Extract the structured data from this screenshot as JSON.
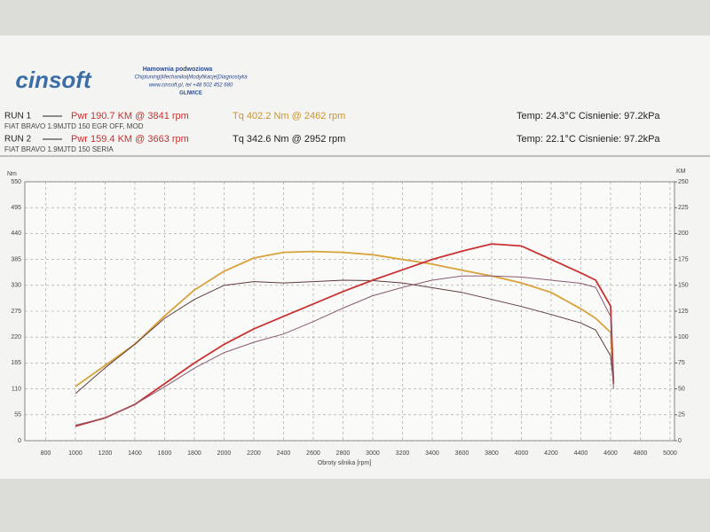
{
  "header": {
    "logo": "cinsoft",
    "line1": "Hamownia podwoziowa",
    "line2": "Chiptuning|Mechanika|Modyfikacje|Diagnostyka",
    "line3": "www.cinsoft.pl, tel +48 502 452 680",
    "line4": "GLIWICE"
  },
  "runs": [
    {
      "label": "RUN 1",
      "pwr": "Pwr  190.7 KM @ 3841 rpm",
      "tq": "Tq 402.2 Nm @ 2462 rpm",
      "cond": "Temp: 24.3°C  Cisnienie: 97.2kPa",
      "car": "FIAT BRAVO 1.9MJTD 150 EGR OFF, MOD"
    },
    {
      "label": "RUN 2",
      "pwr": "Pwr  159.4 KM @ 3663 rpm",
      "tq": "Tq 342.6 Nm @ 2952 rpm",
      "cond": "Temp: 22.1°C  Cisnienie: 97.2kPa",
      "car": "FIAT BRAVO 1.9MJTD 150 SERIA"
    }
  ],
  "chart_data": {
    "type": "line",
    "ylabel": "Nm",
    "y2label": "KM",
    "xlabel": "Obroty silnika [rpm]",
    "grid": true,
    "x": [
      1000,
      1200,
      1400,
      1600,
      1800,
      2000,
      2200,
      2400,
      2600,
      2800,
      3000,
      3200,
      3400,
      3600,
      3800,
      4000,
      4200,
      4400,
      4500,
      4600,
      4620
    ],
    "xlim": [
      660,
      5030
    ],
    "xticks": [
      800,
      1000,
      1200,
      1400,
      1600,
      1800,
      2000,
      2200,
      2400,
      2600,
      2800,
      3000,
      3200,
      3400,
      3600,
      3800,
      4000,
      4200,
      4400,
      4600,
      4800,
      5000
    ],
    "ylim": [
      0,
      550
    ],
    "yticks": [
      0,
      55,
      110,
      165,
      220,
      275,
      330,
      385,
      440,
      495,
      550
    ],
    "y2lim": [
      0,
      250
    ],
    "y2ticks": [
      0,
      25,
      50,
      75,
      100,
      125,
      150,
      175,
      200,
      225,
      250
    ],
    "series": [
      {
        "name": "Run 1 Tq",
        "color": "#d9a23a",
        "values": [
          115,
          160,
          205,
          265,
          320,
          360,
          388,
          400,
          402,
          400,
          395,
          385,
          375,
          362,
          350,
          335,
          315,
          280,
          260,
          230,
          130
        ]
      },
      {
        "name": "Run 2 Tq",
        "color": "#5e3c3c",
        "values": [
          100,
          155,
          205,
          260,
          300,
          330,
          338,
          335,
          338,
          341,
          340,
          335,
          325,
          315,
          300,
          285,
          268,
          250,
          235,
          180,
          120
        ]
      },
      {
        "name": "Run 1 Pwr",
        "color": "#c83232",
        "axis": "y2",
        "values": [
          14,
          22,
          35,
          55,
          75,
          93,
          108,
          120,
          132,
          144,
          155,
          165,
          175,
          183,
          190,
          188,
          175,
          162,
          155,
          130,
          55
        ]
      },
      {
        "name": "Run 2 Pwr",
        "color": "#8a5a72",
        "axis": "y2",
        "values": [
          15,
          22,
          35,
          52,
          70,
          85,
          95,
          103,
          115,
          128,
          140,
          148,
          155,
          159,
          159,
          158,
          155,
          152,
          148,
          120,
          50
        ]
      }
    ]
  }
}
